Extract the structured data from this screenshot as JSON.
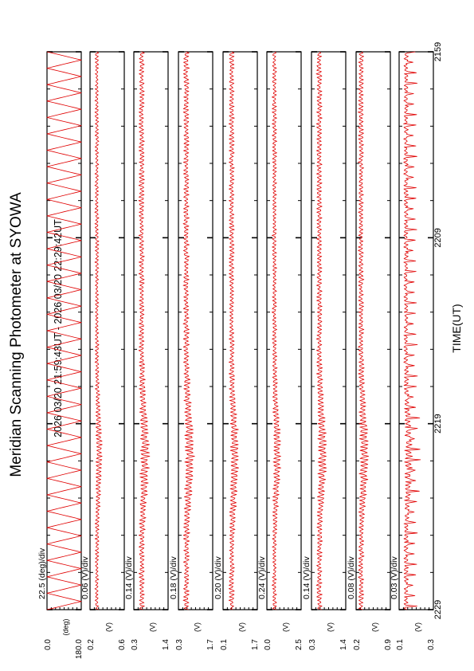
{
  "title": "Meridian Scanning Photometer at SYOWA",
  "period": "2026 03/20 21:59:43UT - 2026 03/20 22:29:42UT",
  "xlabel": "TIME(UT)",
  "colors": {
    "trace": "#e00000",
    "axis": "#000000"
  },
  "chart_data": {
    "type": "line",
    "orientation": "rotated 90 degrees clockwise; time runs top-to-bottom",
    "x_ticks": [
      "2159",
      "2209",
      "2219",
      "2229"
    ],
    "xlim": [
      "2159",
      "2229"
    ],
    "panels": [
      {
        "scale": "22.5 (deg)/div",
        "unit": "deg",
        "y_ticks": [
          "0.0",
          "180.0"
        ],
        "ylim": [
          0.0,
          180.0
        ],
        "series": {
          "shape": "sawtooth scan angle",
          "cycles": 34
        }
      },
      {
        "scale": "0.06 (V)/div",
        "unit": "V",
        "y_ticks": [
          "0.2",
          "0.6"
        ],
        "ylim": [
          0.2,
          0.6
        ],
        "series": {
          "baseline": 0.28,
          "peak": 0.38,
          "peak_time": "2208"
        }
      },
      {
        "scale": "0.14 (V)/div",
        "unit": "V",
        "y_ticks": [
          "0.3",
          "1.4"
        ],
        "ylim": [
          0.3,
          1.4
        ],
        "series": {
          "baseline": 0.55,
          "peak": 0.95,
          "peak_time": "2208"
        }
      },
      {
        "scale": "0.18 (V)/div",
        "unit": "V",
        "y_ticks": [
          "0.3",
          "1.7"
        ],
        "ylim": [
          0.3,
          1.7
        ],
        "series": {
          "baseline": 0.62,
          "peak": 1.15,
          "peak_time": "2208"
        }
      },
      {
        "scale": "0.20 (V)/div",
        "unit": "V",
        "y_ticks": [
          "0.1",
          "1.7"
        ],
        "ylim": [
          0.1,
          1.7
        ],
        "series": {
          "baseline": 0.5,
          "peak": 1.05,
          "peak_time": "2208"
        }
      },
      {
        "scale": "0.24 (V)/div",
        "unit": "V",
        "y_ticks": [
          "0.0",
          "2.5"
        ],
        "ylim": [
          0.0,
          2.5
        ],
        "series": {
          "baseline": 0.55,
          "peak": 1.3,
          "peak_time": "2208"
        }
      },
      {
        "scale": "0.14 (V)/div",
        "unit": "V",
        "y_ticks": [
          "0.3",
          "1.4"
        ],
        "ylim": [
          0.3,
          1.4
        ],
        "series": {
          "baseline": 0.55,
          "peak": 0.95,
          "peak_time": "2208"
        }
      },
      {
        "scale": "0.08 (V)/div",
        "unit": "V",
        "y_ticks": [
          "0.2",
          "0.9"
        ],
        "ylim": [
          0.2,
          0.9
        ],
        "series": {
          "baseline": 0.3,
          "peak": 0.55,
          "peak_time": "2209"
        }
      },
      {
        "scale": "0.03 (V)/div",
        "unit": "V",
        "y_ticks": [
          "0.1",
          "0.3"
        ],
        "ylim": [
          0.1,
          0.3
        ],
        "series": {
          "baseline": 0.14,
          "peak": 0.2,
          "peak_time": "2209",
          "spiky": true
        }
      }
    ]
  }
}
